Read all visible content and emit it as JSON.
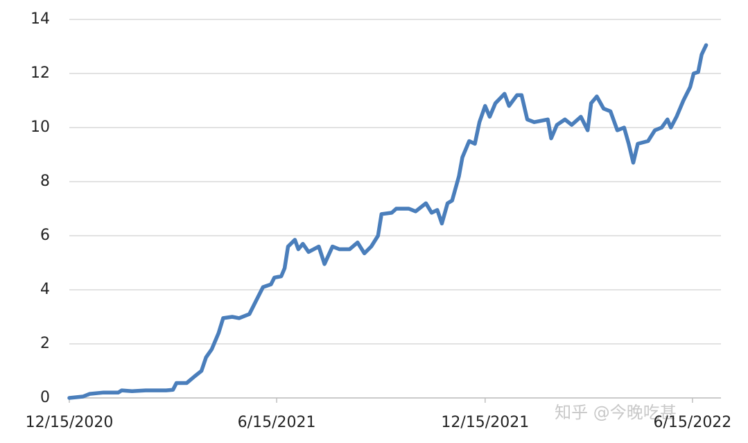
{
  "chart_data": {
    "type": "line",
    "watermark": "知乎 @今晚吃甚",
    "x": [
      "12/15/2020",
      "12/27/2020",
      "1/2/2021",
      "1/14/2021",
      "1/27/2021",
      "1/30/2021",
      "2/8/2021",
      "2/20/2021",
      "3/10/2021",
      "3/16/2021",
      "3/19/2021",
      "3/28/2021",
      "4/4/2021",
      "4/10/2021",
      "4/14/2021",
      "4/19/2021",
      "4/25/2021",
      "4/29/2021",
      "5/7/2021",
      "5/13/2021",
      "5/22/2021",
      "5/28/2021",
      "6/3/2021",
      "6/10/2021",
      "6/13/2021",
      "6/19/2021",
      "6/22/2021",
      "6/25/2021",
      "7/1/2021",
      "7/4/2021",
      "7/8/2021",
      "7/13/2021",
      "7/22/2021",
      "7/27/2021",
      "8/3/2021",
      "8/9/2021",
      "8/18/2021",
      "8/25/2021",
      "8/31/2021",
      "9/6/2021",
      "9/12/2021",
      "9/15/2021",
      "9/24/2021",
      "9/28/2021",
      "10/9/2021",
      "10/15/2021",
      "10/24/2021",
      "10/29/2021",
      "11/3/2021",
      "11/7/2021",
      "11/12/2021",
      "11/16/2021",
      "11/22/2021",
      "11/25/2021",
      "12/1/2021",
      "12/6/2021",
      "12/10/2021",
      "12/15/2021",
      "12/19/2021",
      "12/24/2021",
      "1/1/2022",
      "1/5/2022",
      "1/12/2022",
      "1/16/2022",
      "1/21/2022",
      "1/27/2022",
      "2/8/2022",
      "2/11/2022",
      "2/16/2022",
      "2/23/2022",
      "3/1/2022",
      "3/9/2022",
      "3/15/2022",
      "3/18/2022",
      "3/23/2022",
      "3/29/2022",
      "4/4/2022",
      "4/10/2022",
      "4/16/2022",
      "4/20/2022",
      "4/24/2022",
      "4/28/2022",
      "5/7/2022",
      "5/13/2022",
      "5/19/2022",
      "5/24/2022",
      "5/27/2022",
      "6/1/2022",
      "6/7/2022",
      "6/13/2022",
      "6/16/2022",
      "6/20/2022",
      "6/23/2022",
      "6/27/2022"
    ],
    "series": [
      {
        "color": "#4a7ebb",
        "values": [
          0,
          0.05,
          0.15,
          0.2,
          0.2,
          0.28,
          0.25,
          0.28,
          0.28,
          0.3,
          0.55,
          0.55,
          0.8,
          1.0,
          1.5,
          1.8,
          2.4,
          2.95,
          3.0,
          2.95,
          3.1,
          3.6,
          4.1,
          4.2,
          4.45,
          4.5,
          4.8,
          5.6,
          5.85,
          5.5,
          5.7,
          5.4,
          5.6,
          4.95,
          5.6,
          5.5,
          5.5,
          5.75,
          5.35,
          5.6,
          6.0,
          6.8,
          6.85,
          7.0,
          7.0,
          6.9,
          7.2,
          6.85,
          6.95,
          6.45,
          7.2,
          7.3,
          8.2,
          8.9,
          9.5,
          9.4,
          10.2,
          10.8,
          10.4,
          10.9,
          11.25,
          10.8,
          11.2,
          11.2,
          10.3,
          10.2,
          10.3,
          9.6,
          10.1,
          10.3,
          10.1,
          10.4,
          9.9,
          10.9,
          11.15,
          10.7,
          10.6,
          9.9,
          10.0,
          9.4,
          8.7,
          9.4,
          9.5,
          9.9,
          10.0,
          10.3,
          10.0,
          10.4,
          11.0,
          11.5,
          12.0,
          12.05,
          12.7,
          13.05
        ]
      }
    ],
    "xlim": [
      "12/15/2020",
      "7/10/2022"
    ],
    "xticks": [
      "12/15/2020",
      "6/15/2021",
      "12/15/2021",
      "6/15/2022"
    ],
    "ylim": [
      0,
      14
    ],
    "yticks": [
      0,
      2,
      4,
      6,
      8,
      10,
      12,
      14
    ],
    "grid": true
  }
}
